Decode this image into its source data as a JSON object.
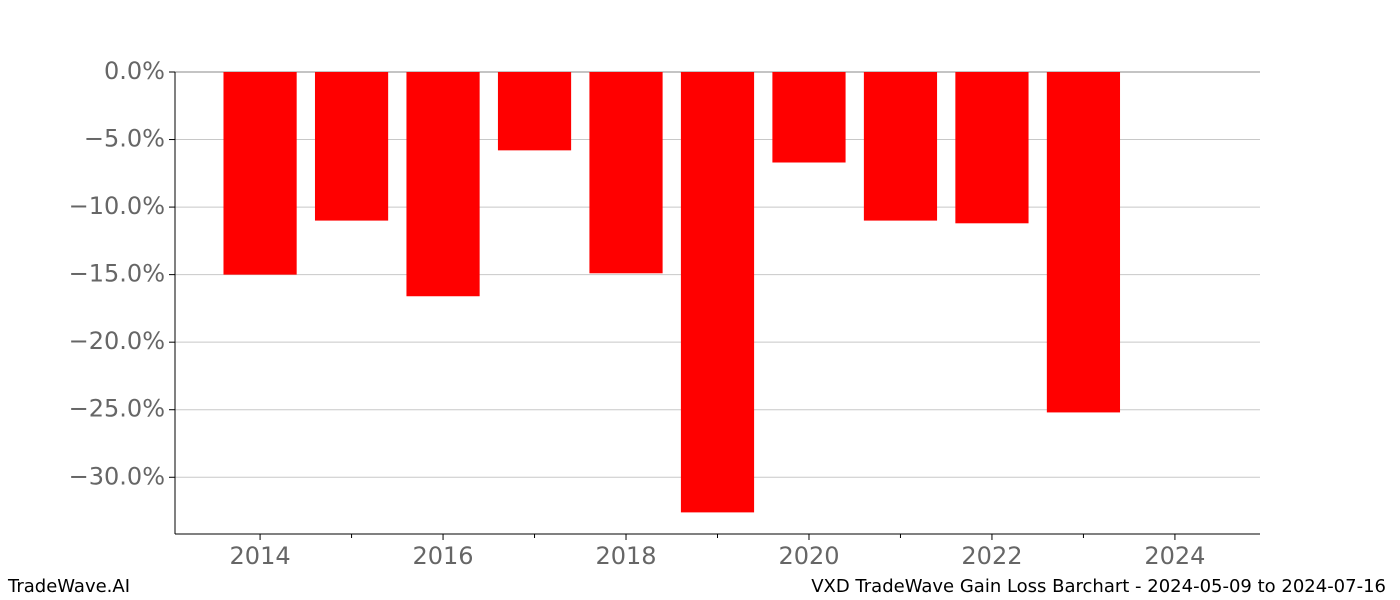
{
  "chart_data": {
    "type": "bar",
    "title": "VXD TradeWave Gain Loss Barchart - 2024-05-09 to 2024-07-16",
    "brand": "TradeWave.AI",
    "x": [
      2014,
      2015,
      2016,
      2017,
      2018,
      2019,
      2020,
      2021,
      2022,
      2023
    ],
    "values": [
      -15.0,
      -11.0,
      -16.6,
      -5.8,
      -14.9,
      -32.6,
      -6.7,
      -11.0,
      -11.2,
      -25.2
    ],
    "color": "#ff0000",
    "xlim": [
      2013.07,
      2024.93
    ],
    "xticks": [
      2014,
      2016,
      2018,
      2020,
      2022,
      2024
    ],
    "xminorticks": [
      2015,
      2017,
      2019,
      2021,
      2023
    ],
    "ylim": [
      -34.2,
      0
    ],
    "yticks": [
      {
        "value": 0,
        "label": "0.0%"
      },
      {
        "value": -5,
        "label": "−5.0%"
      },
      {
        "value": -10,
        "label": "−10.0%"
      },
      {
        "value": -15,
        "label": "−15.0%"
      },
      {
        "value": -20,
        "label": "−20.0%"
      },
      {
        "value": -25,
        "label": "−25.0%"
      },
      {
        "value": -30,
        "label": "−30.0%"
      }
    ],
    "grid": true
  }
}
